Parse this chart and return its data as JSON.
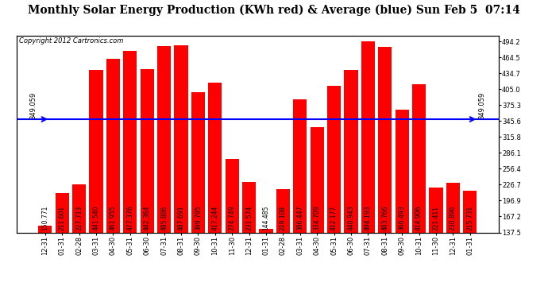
{
  "title": "Monthly Solar Energy Production (KWh red) & Average (blue) Sun Feb 5  07:14",
  "copyright": "Copyright 2012 Cartronics.com",
  "average": 349.059,
  "categories": [
    "12-31",
    "01-31",
    "02-28",
    "03-31",
    "04-30",
    "05-31",
    "06-30",
    "07-31",
    "08-31",
    "09-30",
    "10-31",
    "11-30",
    "12-31",
    "01-31",
    "02-28",
    "03-31",
    "04-30",
    "05-31",
    "06-30",
    "07-31",
    "08-31",
    "09-30",
    "10-31",
    "11-30",
    "12-31",
    "01-31"
  ],
  "values": [
    150.771,
    211.601,
    227.713,
    441.54,
    461.955,
    477.376,
    442.364,
    485.886,
    487.691,
    399.795,
    417.244,
    274.749,
    231.574,
    144.485,
    219.108,
    386.447,
    334.709,
    412.177,
    440.943,
    494.193,
    483.766,
    366.493,
    414.906,
    221.411,
    230.896,
    215.731
  ],
  "bar_color": "#ff0000",
  "avg_line_color": "#0000ff",
  "background_color": "#ffffff",
  "grid_color": "#aaaaaa",
  "yticks_right": [
    137.5,
    167.2,
    196.9,
    226.7,
    256.4,
    286.1,
    315.8,
    345.6,
    375.3,
    405.0,
    434.7,
    464.5,
    494.2
  ],
  "ylim_min": 137.5,
  "ylim_max": 505.0,
  "title_fontsize": 10,
  "copyright_fontsize": 6,
  "tick_fontsize": 6,
  "label_fontsize": 5.5
}
